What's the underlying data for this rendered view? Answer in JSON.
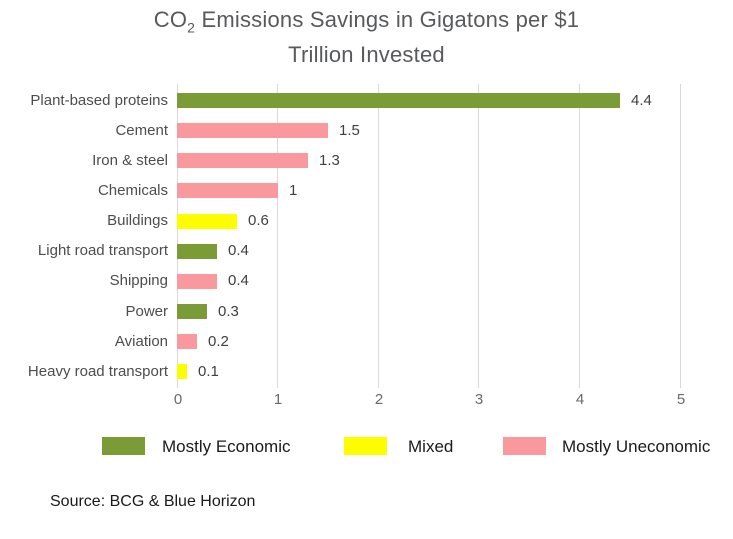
{
  "title": {
    "line1_prefix": "CO",
    "line1_subscript": "2",
    "line1_rest": " Emissions Savings in Gigatons per $1",
    "line2": "Trillion Invested"
  },
  "source": "Source: BCG & Blue Horizon",
  "colors": {
    "economic": "#7a9b35",
    "mixed": "#fdfd00",
    "uneconomic": "#f9999e",
    "gridline": "#d9d9d9"
  },
  "legend": [
    {
      "label": "Mostly Economic",
      "group": "economic"
    },
    {
      "label": "Mixed",
      "group": "mixed"
    },
    {
      "label": "Mostly Uneconomic",
      "group": "uneconomic"
    }
  ],
  "chart_data": {
    "type": "bar",
    "orientation": "horizontal",
    "title": "CO2 Emissions Savings in Gigatons per $1 Trillion Invested",
    "categories": [
      "Plant-based proteins",
      "Cement",
      "Iron & steel",
      "Chemicals",
      "Buildings",
      "Light road transport",
      "Shipping",
      "Power",
      "Aviation",
      "Heavy road transport"
    ],
    "values": [
      4.4,
      1.5,
      1.3,
      1,
      0.6,
      0.4,
      0.4,
      0.3,
      0.2,
      0.1
    ],
    "value_labels": [
      "4.4",
      "1.5",
      "1.3",
      "1",
      "0.6",
      "0.4",
      "0.4",
      "0.3",
      "0.2",
      "0.1"
    ],
    "groups": [
      "economic",
      "uneconomic",
      "uneconomic",
      "uneconomic",
      "mixed",
      "economic",
      "uneconomic",
      "economic",
      "uneconomic",
      "mixed"
    ],
    "xlabel": "",
    "ylabel": "",
    "xlim": [
      0,
      5
    ],
    "x_ticks": [
      "0",
      "1",
      "2",
      "3",
      "4",
      "5"
    ],
    "grid": "vertical",
    "legend_position": "bottom"
  }
}
